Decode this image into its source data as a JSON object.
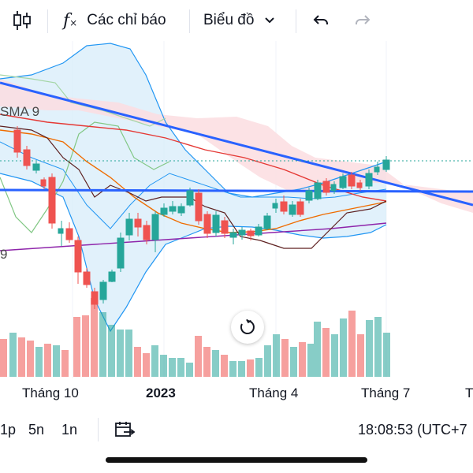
{
  "toolbar": {
    "candle_icon": "candlestick-icon",
    "indicators_label": "Các chỉ báo",
    "chart_type_label": "Biểu đồ",
    "undo_icon": "undo-icon",
    "redo_icon": "redo-icon"
  },
  "chart": {
    "legend_sma": "SMA 9",
    "left_edge_label": "9",
    "colors": {
      "up": "#26a69a",
      "down": "#ef5350",
      "trendline": "#2962ff",
      "bb": "#2196f3",
      "cloud_fill": "#e3f2fd"
    },
    "x_labels": [
      "Tháng 10",
      "2023",
      "Tháng 4",
      "Tháng 7",
      "T"
    ]
  },
  "bottom": {
    "intervals": [
      "1p",
      "5n",
      "1n"
    ],
    "time": "18:08:53 (UTC+7"
  },
  "chart_data": {
    "type": "candlestick",
    "x_labels": [
      "Tháng 10",
      "2023",
      "Tháng 4",
      "Tháng 7"
    ],
    "legend": [
      "SMA 9"
    ],
    "grid": true
  }
}
